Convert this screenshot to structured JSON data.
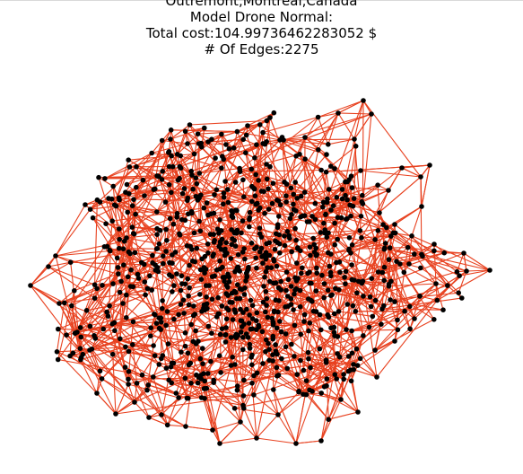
{
  "figure": {
    "title_lines": [
      "Outremont,Montreal,Canada",
      "Model Drone Normal:",
      "Total cost:104.99736462283052 $",
      "# Of Edges:2275"
    ]
  },
  "graph": {
    "edge_color": "#e8411f",
    "node_color": "#000000",
    "edge_count": 2275
  }
}
